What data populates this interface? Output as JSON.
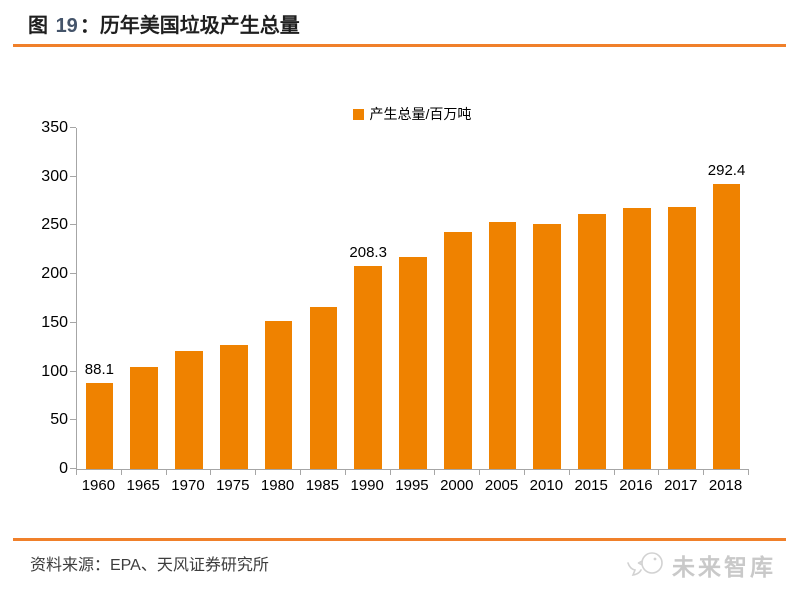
{
  "figure": {
    "label_prefix": "图",
    "number": "19",
    "separator": "：",
    "title": "历年美国垃圾产生总量"
  },
  "legend": {
    "label": "产生总量/百万吨"
  },
  "chart_data": {
    "type": "bar",
    "title": "历年美国垃圾产生总量",
    "series_name": "产生总量/百万吨",
    "categories": [
      "1960",
      "1965",
      "1970",
      "1975",
      "1980",
      "1985",
      "1990",
      "1995",
      "2000",
      "2005",
      "2010",
      "2015",
      "2016",
      "2017",
      "2018"
    ],
    "values": [
      88.1,
      104.4,
      121.1,
      127.8,
      151.6,
      166.3,
      208.3,
      217.3,
      243.5,
      253.7,
      251.1,
      262.1,
      268.1,
      268.7,
      292.4
    ],
    "data_labels": {
      "1960": "88.1",
      "1990": "208.3",
      "2018": "292.4"
    },
    "ylim": [
      0,
      350
    ],
    "yticks": [
      0,
      50,
      100,
      150,
      200,
      250,
      300,
      350
    ],
    "grid": false,
    "legend_position": "top-center",
    "bar_color": "#EF8200",
    "xlabel": "",
    "ylabel": ""
  },
  "footer": {
    "source": "资料来源：EPA、天风证券研究所"
  },
  "watermark": {
    "text": "未来智库",
    "icon": "bird-logo-icon"
  },
  "colors": {
    "bar_orange": "#EF8200",
    "rule_orange": "#F0802A",
    "title_number": "#44546A",
    "axis_line": "#A6A6A6",
    "text_dark": "#1F1F1F",
    "source_text": "#3D3D3D",
    "watermark_gray": "#C9C9C9"
  }
}
